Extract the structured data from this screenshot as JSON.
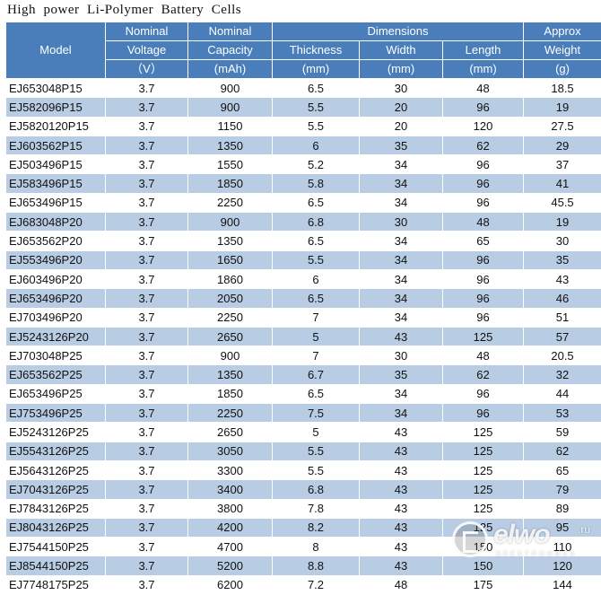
{
  "document": {
    "title": "High  power  Li-Polymer  Battery  Cells"
  },
  "table": {
    "headers": {
      "model": "Model",
      "voltage": [
        "Nominal",
        "Voltage",
        "（V）"
      ],
      "capacity": [
        "Nominal",
        "Capacity",
        "(mAh)"
      ],
      "dimensions_group": "Dimensions",
      "thickness": [
        "Thickness",
        "(mm)"
      ],
      "width": [
        "Width",
        "(mm)"
      ],
      "length": [
        "Length",
        "(mm)"
      ],
      "weight": [
        "Approx",
        "Weight",
        "(g)"
      ]
    },
    "rows": [
      [
        "EJ653048P15",
        "3.7",
        "900",
        "6.5",
        "30",
        "48",
        "18.5"
      ],
      [
        "EJ582096P15",
        "3.7",
        "900",
        "5.5",
        "20",
        "96",
        "19"
      ],
      [
        "EJ5820120P15",
        "3.7",
        "1150",
        "5.5",
        "20",
        "120",
        "27.5"
      ],
      [
        "EJ603562P15",
        "3.7",
        "1350",
        "6",
        "35",
        "62",
        "29"
      ],
      [
        "EJ503496P15",
        "3.7",
        "1550",
        "5.2",
        "34",
        "96",
        "37"
      ],
      [
        "EJ583496P15",
        "3.7",
        "1850",
        "5.8",
        "34",
        "96",
        "41"
      ],
      [
        "EJ653496P15",
        "3.7",
        "2250",
        "6.5",
        "34",
        "96",
        "45.5"
      ],
      [
        "EJ683048P20",
        "3.7",
        "900",
        "6.8",
        "30",
        "48",
        "19"
      ],
      [
        "EJ653562P20",
        "3.7",
        "1350",
        "6.5",
        "34",
        "65",
        "30"
      ],
      [
        "EJ553496P20",
        "3.7",
        "1650",
        "5.5",
        "34",
        "96",
        "35"
      ],
      [
        "EJ603496P20",
        "3.7",
        "1860",
        "6",
        "34",
        "96",
        "43"
      ],
      [
        "EJ653496P20",
        "3.7",
        "2050",
        "6.5",
        "34",
        "96",
        "46"
      ],
      [
        "EJ703496P20",
        "3.7",
        "2250",
        "7",
        "34",
        "96",
        "51"
      ],
      [
        "EJ5243126P20",
        "3.7",
        "2650",
        "5",
        "43",
        "125",
        "57"
      ],
      [
        "EJ703048P25",
        "3.7",
        "900",
        "7",
        "30",
        "48",
        "20.5"
      ],
      [
        "EJ653562P25",
        "3.7",
        "1350",
        "6.7",
        "35",
        "62",
        "32"
      ],
      [
        "EJ653496P25",
        "3.7",
        "1850",
        "6.5",
        "34",
        "96",
        "44"
      ],
      [
        "EJ753496P25",
        "3.7",
        "2250",
        "7.5",
        "34",
        "96",
        "53"
      ],
      [
        "EJ5243126P25",
        "3.7",
        "2650",
        "5",
        "43",
        "125",
        "59"
      ],
      [
        "EJ5543126P25",
        "3.7",
        "3050",
        "5.5",
        "43",
        "125",
        "62"
      ],
      [
        "EJ5643126P25",
        "3.7",
        "3300",
        "5.5",
        "43",
        "125",
        "65"
      ],
      [
        "EJ7043126P25",
        "3.7",
        "3400",
        "6.8",
        "43",
        "125",
        "79"
      ],
      [
        "EJ7843126P25",
        "3.7",
        "3800",
        "7.8",
        "43",
        "125",
        "89"
      ],
      [
        "EJ8043126P25",
        "3.7",
        "4200",
        "8.2",
        "43",
        "125",
        "95"
      ],
      [
        "EJ7544150P25",
        "3.7",
        "4700",
        "8",
        "43",
        "150",
        "110"
      ],
      [
        "EJ8544150P25",
        "3.7",
        "5200",
        "8.8",
        "43",
        "150",
        "120"
      ],
      [
        "EJ7748175P25",
        "3.7",
        "6200",
        "7.2",
        "48",
        "175",
        "144"
      ]
    ]
  },
  "watermark": {
    "brand": "elwo",
    "tld": ".ru",
    "tagline": "ЭЛЕКТРОНИКА"
  },
  "colors": {
    "header_bg": "#4a7ebb",
    "stripe_bg": "#b8cce4",
    "text": "#111111"
  }
}
